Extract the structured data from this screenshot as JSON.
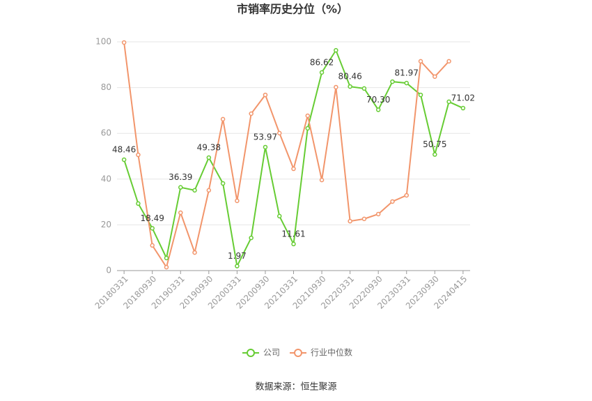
{
  "chart_data": {
    "type": "line",
    "title": "市销率历史分位（%）",
    "categories": [
      "20180331",
      null,
      "20180930",
      null,
      "20190331",
      null,
      "20190930",
      null,
      "20200331",
      null,
      "20200930",
      null,
      "20210331",
      null,
      "20210930",
      null,
      "20220331",
      null,
      "20220930",
      null,
      "20230331",
      null,
      "20230930",
      null,
      "20240415"
    ],
    "series": [
      {
        "name": "公司",
        "color": "#66cc33",
        "values": [
          48.46,
          29.3,
          18.49,
          5.5,
          36.39,
          35.1,
          49.38,
          38.1,
          1.97,
          14.3,
          53.97,
          23.8,
          11.61,
          62.2,
          86.62,
          96.3,
          80.46,
          79.6,
          70.3,
          82.6,
          81.97,
          76.8,
          50.75,
          73.8,
          71.02
        ],
        "value_labels": [
          "48.46",
          null,
          "18.49",
          null,
          "36.39",
          null,
          "49.38",
          null,
          "1.97",
          null,
          "53.97",
          null,
          "11.61",
          null,
          "86.62",
          null,
          "80.46",
          null,
          "70.30",
          null,
          "81.97",
          null,
          "50.75",
          null,
          "71.02"
        ]
      },
      {
        "name": "行业中位数",
        "color": "#f2956b",
        "values": [
          99.7,
          50.6,
          11.0,
          1.5,
          25.3,
          7.9,
          35.1,
          66.2,
          30.5,
          68.6,
          76.8,
          60.1,
          44.5,
          67.7,
          39.6,
          80.2,
          21.6,
          22.6,
          24.7,
          30.2,
          32.9,
          91.5,
          84.8,
          91.5,
          null
        ]
      }
    ],
    "ylim": [
      0,
      100
    ],
    "yticks": [
      0,
      20,
      40,
      60,
      80,
      100
    ],
    "grid": true,
    "source": "数据来源：恒生聚源"
  }
}
